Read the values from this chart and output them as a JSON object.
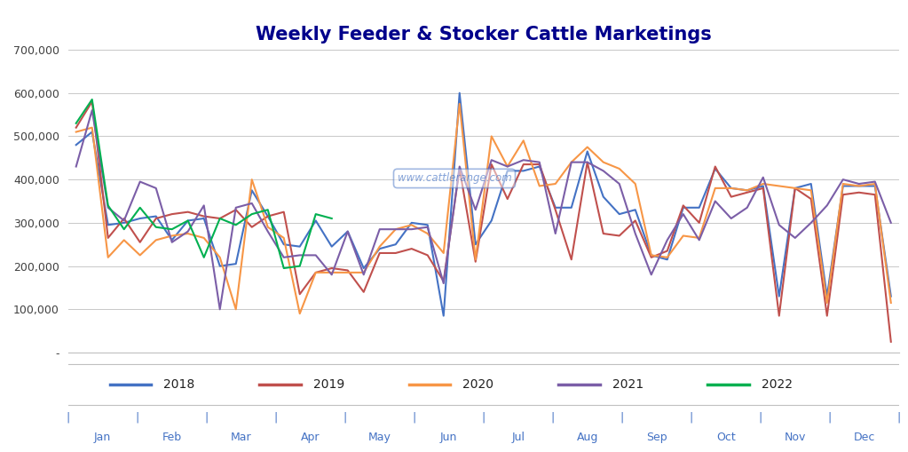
{
  "title": "Weekly Feeder & Stocker Cattle Marketings",
  "title_color": "#00008B",
  "background_color": "#FFFFFF",
  "plot_bg_color": "#FFFFFF",
  "watermark": "www.cattlerange.com",
  "ylim": [
    0,
    700000
  ],
  "yticks": [
    0,
    100000,
    200000,
    300000,
    400000,
    500000,
    600000,
    700000
  ],
  "series": {
    "2018": {
      "color": "#4472C4",
      "data": [
        480000,
        510000,
        295000,
        300000,
        310000,
        315000,
        260000,
        305000,
        310000,
        200000,
        205000,
        375000,
        315000,
        250000,
        245000,
        305000,
        245000,
        280000,
        195000,
        240000,
        250000,
        300000,
        295000,
        85000,
        600000,
        250000,
        305000,
        420000,
        420000,
        430000,
        335000,
        335000,
        465000,
        360000,
        320000,
        330000,
        225000,
        215000,
        335000,
        335000,
        425000,
        380000,
        375000,
        385000,
        130000,
        380000,
        390000,
        130000,
        385000,
        385000,
        385000,
        130000
      ]
    },
    "2019": {
      "color": "#C0504D",
      "data": [
        520000,
        580000,
        265000,
        310000,
        255000,
        310000,
        320000,
        325000,
        315000,
        310000,
        330000,
        290000,
        315000,
        325000,
        135000,
        185000,
        195000,
        190000,
        140000,
        230000,
        230000,
        240000,
        225000,
        165000,
        425000,
        210000,
        435000,
        355000,
        435000,
        435000,
        330000,
        215000,
        440000,
        275000,
        270000,
        305000,
        220000,
        235000,
        340000,
        300000,
        430000,
        360000,
        370000,
        380000,
        85000,
        380000,
        355000,
        85000,
        365000,
        370000,
        365000,
        25000
      ]
    },
    "2020": {
      "color": "#F79646",
      "data": [
        510000,
        520000,
        220000,
        260000,
        225000,
        260000,
        270000,
        275000,
        265000,
        220000,
        100000,
        400000,
        290000,
        265000,
        90000,
        185000,
        185000,
        185000,
        185000,
        245000,
        285000,
        295000,
        275000,
        230000,
        575000,
        215000,
        500000,
        430000,
        490000,
        385000,
        390000,
        440000,
        475000,
        440000,
        425000,
        390000,
        225000,
        220000,
        270000,
        265000,
        380000,
        380000,
        375000,
        390000,
        385000,
        380000,
        375000,
        115000,
        390000,
        385000,
        390000,
        115000
      ]
    },
    "2021": {
      "color": "#7B5EA7",
      "data": [
        430000,
        560000,
        335000,
        305000,
        395000,
        380000,
        255000,
        280000,
        340000,
        100000,
        335000,
        345000,
        280000,
        220000,
        225000,
        225000,
        180000,
        280000,
        180000,
        285000,
        285000,
        285000,
        290000,
        160000,
        430000,
        330000,
        445000,
        430000,
        445000,
        440000,
        275000,
        440000,
        440000,
        420000,
        390000,
        275000,
        180000,
        260000,
        320000,
        260000,
        350000,
        310000,
        335000,
        405000,
        295000,
        265000,
        300000,
        340000,
        400000,
        390000,
        395000,
        300000
      ]
    },
    "2022": {
      "color": "#00B050",
      "data": [
        530000,
        585000,
        340000,
        285000,
        335000,
        290000,
        285000,
        305000,
        220000,
        310000,
        295000,
        320000,
        330000,
        195000,
        200000,
        320000,
        310000,
        null,
        null,
        null,
        null,
        null,
        null,
        null,
        null,
        null,
        null,
        null,
        null,
        null,
        null,
        null,
        null,
        null,
        null,
        null,
        null,
        null,
        null,
        null,
        null,
        null,
        null,
        null,
        null,
        null,
        null,
        null,
        null,
        null,
        null,
        null
      ]
    }
  },
  "x_tick_labels": [
    "Jan",
    "Feb",
    "Mar",
    "Apr",
    "May",
    "Jun",
    "Jul",
    "Aug",
    "Sep",
    "Oct",
    "Nov",
    "Dec"
  ],
  "legend_labels": [
    "2018",
    "2019",
    "2020",
    "2021",
    "2022"
  ],
  "legend_colors": [
    "#4472C4",
    "#C0504D",
    "#F79646",
    "#7B5EA7",
    "#00B050"
  ],
  "border_color": "#C0C0C0",
  "xaxis_label_color": "#4472C4",
  "yaxis_label_color": "#404040"
}
